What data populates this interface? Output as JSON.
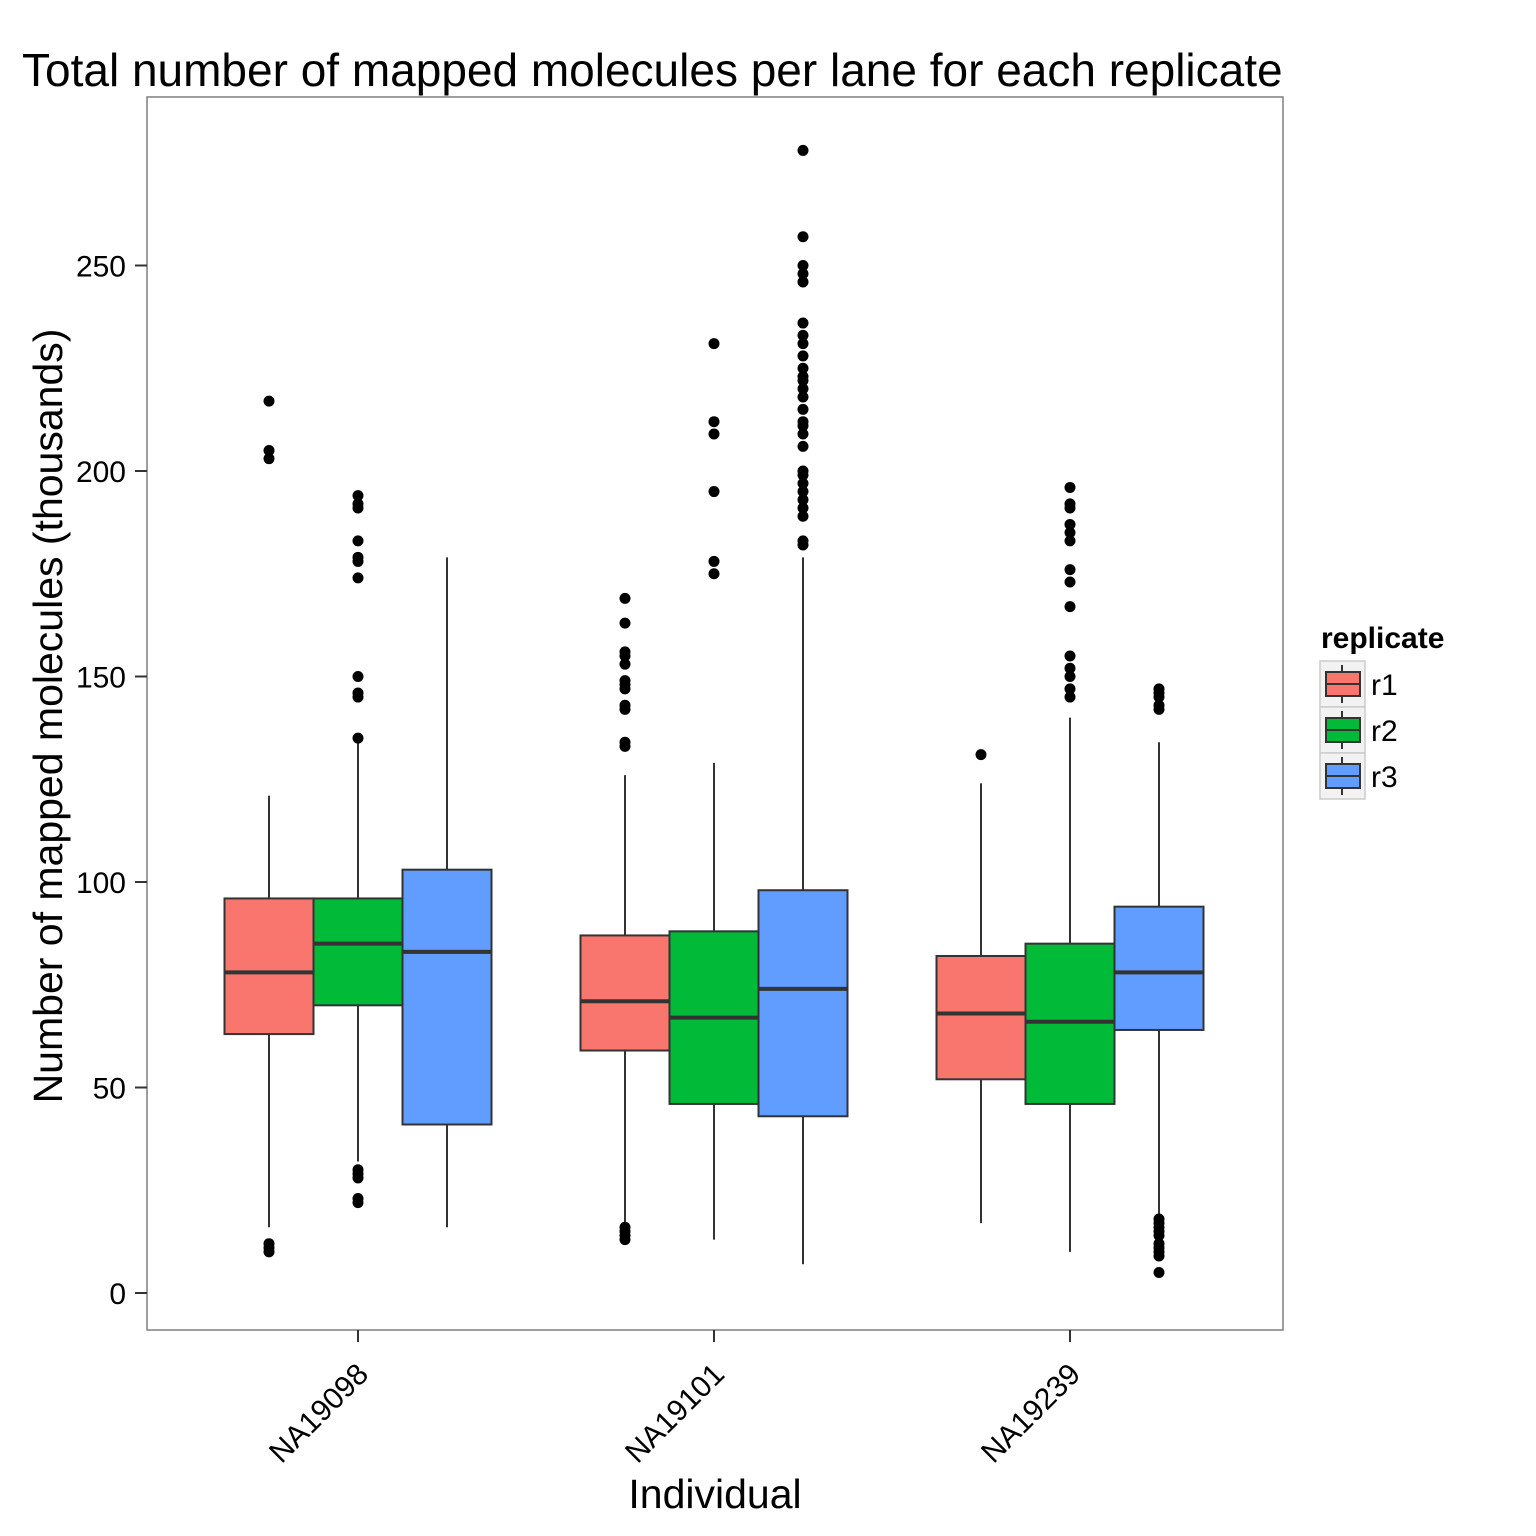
{
  "chart_data": {
    "type": "boxplot",
    "title": "Total number of mapped molecules per lane for each replicate",
    "xlabel": "Individual",
    "ylabel": "Number of mapped molecules (thousands)",
    "ylim": [
      -9,
      291
    ],
    "yticks": [
      0,
      50,
      100,
      150,
      200,
      250
    ],
    "grid": false,
    "legend_position": "right",
    "categories": [
      "NA19098",
      "NA19101",
      "NA19239"
    ],
    "legend": {
      "title": "replicate"
    },
    "series": [
      {
        "name": "r1",
        "color": "#F8766D",
        "boxes": [
          {
            "whisker_low": 16,
            "q1": 63,
            "median": 78,
            "q3": 96,
            "whisker_high": 121,
            "outliers": [
              10,
              11,
              12,
              203,
              205,
              217
            ]
          },
          {
            "whisker_low": 17,
            "q1": 59,
            "median": 71,
            "q3": 87,
            "whisker_high": 126,
            "outliers": [
              13,
              14,
              15,
              16,
              133,
              134,
              142,
              143,
              147,
              148,
              149,
              153,
              155,
              156,
              163,
              169
            ]
          },
          {
            "whisker_low": 17,
            "q1": 52,
            "median": 68,
            "q3": 82,
            "whisker_high": 124,
            "outliers": [
              131
            ]
          }
        ]
      },
      {
        "name": "r2",
        "color": "#00BA38",
        "boxes": [
          {
            "whisker_low": 32,
            "q1": 70,
            "median": 85,
            "q3": 96,
            "whisker_high": 134,
            "outliers": [
              22,
              23,
              28,
              29,
              30,
              135,
              145,
              146,
              150,
              174,
              178,
              179,
              183,
              191,
              192,
              194
            ]
          },
          {
            "whisker_low": 13,
            "q1": 46,
            "median": 67,
            "q3": 88,
            "whisker_high": 129,
            "outliers": [
              175,
              178,
              195,
              209,
              212,
              231
            ]
          },
          {
            "whisker_low": 10,
            "q1": 46,
            "median": 66,
            "q3": 85,
            "whisker_high": 140,
            "outliers": [
              145,
              147,
              150,
              152,
              155,
              167,
              173,
              176,
              183,
              185,
              187,
              191,
              192,
              196
            ]
          }
        ]
      },
      {
        "name": "r3",
        "color": "#619CFF",
        "boxes": [
          {
            "whisker_low": 16,
            "q1": 41,
            "median": 83,
            "q3": 103,
            "whisker_high": 179,
            "outliers": []
          },
          {
            "whisker_low": 7,
            "q1": 43,
            "median": 74,
            "q3": 98,
            "whisker_high": 179,
            "outliers": [
              182,
              183,
              189,
              191,
              193,
              195,
              197,
              199,
              200,
              206,
              209,
              211,
              212,
              215,
              218,
              220,
              222,
              223,
              225,
              228,
              231,
              233,
              236,
              246,
              248,
              250,
              257,
              278
            ]
          },
          {
            "whisker_low": 18,
            "q1": 64,
            "median": 78,
            "q3": 94,
            "whisker_high": 134,
            "outliers": [
              5,
              9,
              10,
              11,
              12,
              14,
              15,
              16,
              17,
              18,
              142,
              143,
              145,
              146,
              147
            ]
          }
        ]
      }
    ]
  }
}
